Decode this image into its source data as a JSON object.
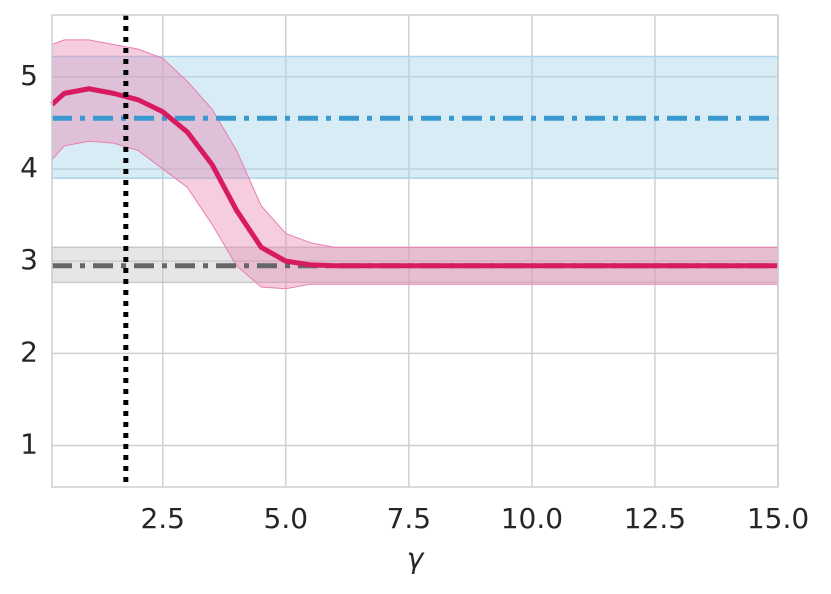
{
  "chart_data": {
    "type": "line",
    "xlabel": "γ",
    "x": [
      0.25,
      0.5,
      1.0,
      1.5,
      2.0,
      2.5,
      3.0,
      3.5,
      4.0,
      4.5,
      5.0,
      5.5,
      6.0,
      7.5,
      10.0,
      12.5,
      15.0
    ],
    "series": [
      {
        "color": "#d81b60",
        "band_color": "#e87fb0",
        "values": [
          4.7,
          4.82,
          4.87,
          4.82,
          4.75,
          4.62,
          4.4,
          4.05,
          3.55,
          3.15,
          3.0,
          2.96,
          2.95,
          2.95,
          2.95,
          2.95,
          2.95
        ],
        "lower": [
          4.1,
          4.25,
          4.3,
          4.28,
          4.2,
          4.0,
          3.8,
          3.4,
          2.95,
          2.72,
          2.7,
          2.75,
          2.75,
          2.75,
          2.75,
          2.75,
          2.75
        ],
        "upper": [
          5.35,
          5.4,
          5.4,
          5.35,
          5.3,
          5.2,
          4.95,
          4.65,
          4.2,
          3.6,
          3.3,
          3.2,
          3.15,
          3.15,
          3.15,
          3.15,
          3.15
        ]
      }
    ],
    "hlines": [
      {
        "value": 4.55,
        "lower": 3.9,
        "upper": 5.22,
        "color": "#3a9ad0",
        "band_color": "#a9d4ea"
      },
      {
        "value": 2.95,
        "lower": 2.77,
        "upper": 3.15,
        "color": "#666666",
        "band_color": "#c8c8c8"
      }
    ],
    "vline": {
      "value": 1.75,
      "color": "#000000"
    },
    "xlim": [
      0.25,
      15.0
    ],
    "ylim": [
      0.55,
      5.67
    ],
    "xticks": [
      2.5,
      {
        "value": 5,
        "label": "5.0"
      },
      7.5,
      {
        "value": 10,
        "label": "10.0"
      },
      12.5,
      {
        "value": 15,
        "label": "15.0"
      }
    ],
    "yticks": [
      1,
      2,
      3,
      4,
      5
    ],
    "grid": true
  }
}
